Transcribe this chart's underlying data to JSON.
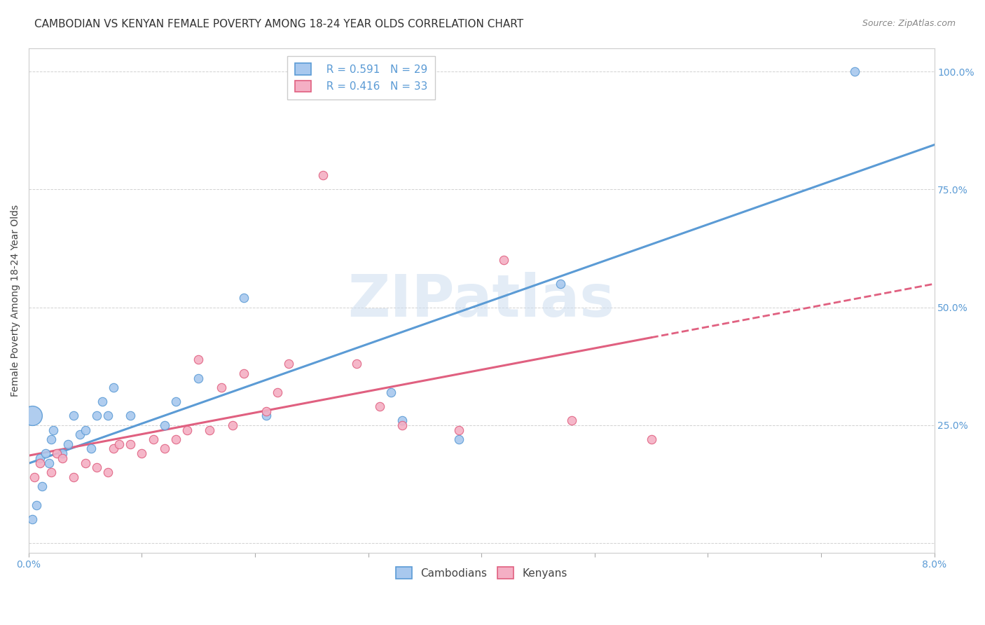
{
  "title": "CAMBODIAN VS KENYAN FEMALE POVERTY AMONG 18-24 YEAR OLDS CORRELATION CHART",
  "source": "Source: ZipAtlas.com",
  "ylabel": "Female Poverty Among 18-24 Year Olds",
  "xlim": [
    0.0,
    0.08
  ],
  "ylim": [
    -0.02,
    1.05
  ],
  "xticks": [
    0.0,
    0.01,
    0.02,
    0.03,
    0.04,
    0.05,
    0.06,
    0.07,
    0.08
  ],
  "xticklabels": [
    "0.0%",
    "",
    "",
    "",
    "",
    "",
    "",
    "",
    "8.0%"
  ],
  "yticks": [
    0.0,
    0.25,
    0.5,
    0.75,
    1.0
  ],
  "yticklabels": [
    "",
    "25.0%",
    "50.0%",
    "75.0%",
    "100.0%"
  ],
  "cambodian_color": "#a8c8ee",
  "kenyan_color": "#f4afc4",
  "cambodian_line_color": "#5b9bd5",
  "kenyan_line_color": "#e06080",
  "background_color": "#ffffff",
  "grid_color": "#cccccc",
  "watermark": "ZIPatlas",
  "legend_R_cambodian": "R = 0.591",
  "legend_N_cambodian": "N = 29",
  "legend_R_kenyan": "R = 0.416",
  "legend_N_kenyan": "N = 33",
  "cambodian_x": [
    0.0003,
    0.0007,
    0.001,
    0.0012,
    0.0015,
    0.0018,
    0.002,
    0.0022,
    0.003,
    0.0035,
    0.004,
    0.0045,
    0.005,
    0.0055,
    0.006,
    0.0065,
    0.007,
    0.0075,
    0.009,
    0.012,
    0.013,
    0.015,
    0.019,
    0.021,
    0.032,
    0.033,
    0.038,
    0.047,
    0.073
  ],
  "cambodian_y": [
    0.05,
    0.08,
    0.18,
    0.12,
    0.19,
    0.17,
    0.22,
    0.24,
    0.19,
    0.21,
    0.27,
    0.23,
    0.24,
    0.2,
    0.27,
    0.3,
    0.27,
    0.33,
    0.27,
    0.25,
    0.3,
    0.35,
    0.52,
    0.27,
    0.32,
    0.26,
    0.22,
    0.55,
    1.0
  ],
  "kenyan_x": [
    0.0005,
    0.001,
    0.002,
    0.0025,
    0.003,
    0.004,
    0.005,
    0.006,
    0.007,
    0.0075,
    0.008,
    0.009,
    0.01,
    0.011,
    0.012,
    0.013,
    0.014,
    0.015,
    0.016,
    0.017,
    0.018,
    0.019,
    0.021,
    0.022,
    0.023,
    0.026,
    0.029,
    0.031,
    0.033,
    0.038,
    0.042,
    0.048,
    0.055
  ],
  "kenyan_y": [
    0.14,
    0.17,
    0.15,
    0.19,
    0.18,
    0.14,
    0.17,
    0.16,
    0.15,
    0.2,
    0.21,
    0.21,
    0.19,
    0.22,
    0.2,
    0.22,
    0.24,
    0.39,
    0.24,
    0.33,
    0.25,
    0.36,
    0.28,
    0.32,
    0.38,
    0.78,
    0.38,
    0.29,
    0.25,
    0.24,
    0.6,
    0.26,
    0.22
  ],
  "title_fontsize": 11,
  "axis_label_fontsize": 10,
  "tick_fontsize": 10,
  "legend_fontsize": 11
}
